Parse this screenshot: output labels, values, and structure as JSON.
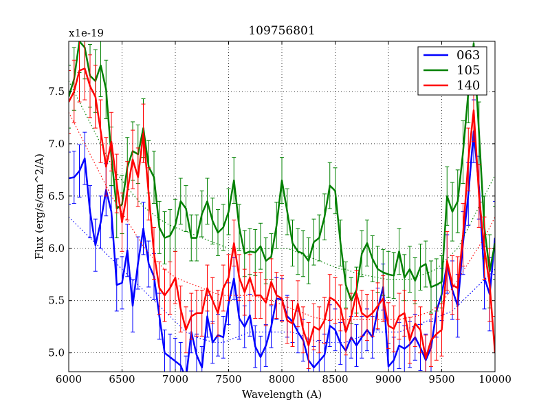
{
  "chart_data": {
    "type": "line",
    "title": "109756801",
    "xlabel": "Wavelength (A)",
    "ylabel": "Flux (erg/s/cm^2/A)",
    "y_offset_label": "x1e-19",
    "xlim": [
      6000,
      10000
    ],
    "ylim": [
      4.82,
      7.98
    ],
    "x_ticks": [
      6000,
      6500,
      7000,
      7500,
      8000,
      8500,
      9000,
      9500,
      10000
    ],
    "x_tick_labels": [
      "6000",
      "6500",
      "7000",
      "7500",
      "8000",
      "8500",
      "9000",
      "9500",
      "10000"
    ],
    "y_ticks": [
      5.0,
      5.5,
      6.0,
      6.5,
      7.0,
      7.5
    ],
    "y_tick_labels": [
      "5.0",
      "5.5",
      "6.0",
      "6.5",
      "7.0",
      "7.5"
    ],
    "grid": true,
    "legend_position": "top-right",
    "series": [
      {
        "name": "063",
        "color": "#0000ff",
        "x": [
          6000,
          6050,
          6100,
          6150,
          6200,
          6250,
          6300,
          6350,
          6400,
          6450,
          6500,
          6550,
          6600,
          6650,
          6700,
          6750,
          6800,
          6850,
          6900,
          6950,
          7000,
          7050,
          7100,
          7150,
          7200,
          7250,
          7300,
          7350,
          7400,
          7450,
          7500,
          7550,
          7600,
          7650,
          7700,
          7750,
          7800,
          7850,
          7900,
          7950,
          8000,
          8050,
          8100,
          8150,
          8200,
          8250,
          8300,
          8350,
          8400,
          8450,
          8500,
          8550,
          8600,
          8650,
          8700,
          8750,
          8800,
          8850,
          8900,
          8950,
          9000,
          9050,
          9100,
          9150,
          9200,
          9250,
          9300,
          9350,
          9400,
          9450,
          9500,
          9550,
          9600,
          9650,
          9700,
          9750,
          9800,
          9850,
          9900,
          9950,
          10000
        ],
        "values": [
          6.67,
          6.68,
          6.74,
          6.86,
          6.35,
          6.03,
          6.25,
          6.56,
          6.35,
          5.65,
          5.67,
          5.98,
          5.45,
          5.86,
          6.19,
          5.85,
          5.73,
          5.35,
          5.0,
          4.96,
          4.92,
          4.88,
          4.75,
          5.2,
          4.98,
          4.86,
          5.35,
          5.1,
          5.17,
          5.15,
          5.47,
          5.71,
          5.33,
          5.25,
          5.36,
          5.06,
          4.96,
          5.07,
          5.25,
          5.52,
          5.51,
          5.35,
          5.3,
          5.2,
          5.12,
          4.93,
          4.86,
          4.92,
          4.98,
          5.26,
          5.22,
          5.09,
          5.02,
          5.15,
          5.07,
          5.15,
          5.22,
          5.15,
          5.42,
          5.63,
          4.87,
          4.93,
          5.07,
          5.04,
          5.08,
          5.15,
          5.05,
          4.93,
          5.05,
          5.4,
          5.56,
          5.85,
          5.6,
          5.45,
          6.05,
          6.52,
          7.12,
          6.58,
          5.72,
          5.56,
          6.1
        ],
        "errors": [
          0.25,
          0.25,
          0.25,
          0.25,
          0.25,
          0.25,
          0.25,
          0.25,
          0.25,
          0.25,
          0.25,
          0.25,
          0.25,
          0.25,
          0.25,
          0.22,
          0.22,
          0.22,
          0.22,
          0.22,
          0.22,
          0.22,
          0.22,
          0.2,
          0.2,
          0.2,
          0.2,
          0.2,
          0.2,
          0.2,
          0.2,
          0.2,
          0.2,
          0.2,
          0.2,
          0.2,
          0.2,
          0.2,
          0.2,
          0.2,
          0.2,
          0.2,
          0.2,
          0.2,
          0.2,
          0.2,
          0.2,
          0.2,
          0.2,
          0.2,
          0.2,
          0.2,
          0.2,
          0.2,
          0.2,
          0.2,
          0.2,
          0.2,
          0.2,
          0.22,
          0.22,
          0.22,
          0.22,
          0.22,
          0.22,
          0.22,
          0.22,
          0.25,
          0.25,
          0.25,
          0.25,
          0.28,
          0.28,
          0.3,
          0.3,
          0.3,
          0.3,
          0.3,
          0.3,
          0.35,
          0.35
        ],
        "continuum": [
          6.3,
          6.25,
          6.2,
          6.15,
          6.1,
          6.05,
          6.0,
          5.95,
          5.9,
          5.85,
          5.8,
          5.75,
          5.7,
          5.65,
          5.6,
          5.55,
          5.5,
          5.45,
          5.4,
          5.35,
          5.3,
          5.25,
          5.2,
          5.18,
          5.15,
          5.13,
          5.12,
          5.1,
          5.1,
          5.1,
          5.12,
          5.14,
          5.16,
          5.18,
          5.2,
          5.2,
          5.2,
          5.2,
          5.2,
          5.2,
          5.2,
          5.2,
          5.2,
          5.18,
          5.16,
          5.14,
          5.12,
          5.1,
          5.1,
          5.1,
          5.1,
          5.1,
          5.1,
          5.12,
          5.14,
          5.16,
          5.18,
          5.2,
          5.2,
          5.2,
          5.2,
          5.2,
          5.2,
          5.22,
          5.24,
          5.26,
          5.28,
          5.3,
          5.32,
          5.34,
          5.36,
          5.38,
          5.4,
          5.45,
          5.5,
          5.55,
          5.6,
          5.65,
          5.7,
          5.75,
          5.8
        ]
      },
      {
        "name": "105",
        "color": "#008000",
        "x": [
          6000,
          6050,
          6100,
          6150,
          6200,
          6250,
          6300,
          6350,
          6400,
          6450,
          6500,
          6550,
          6600,
          6650,
          6700,
          6750,
          6800,
          6850,
          6900,
          6950,
          7000,
          7050,
          7100,
          7150,
          7200,
          7250,
          7300,
          7350,
          7400,
          7450,
          7500,
          7550,
          7600,
          7650,
          7700,
          7750,
          7800,
          7850,
          7900,
          7950,
          8000,
          8050,
          8100,
          8150,
          8200,
          8250,
          8300,
          8350,
          8400,
          8450,
          8500,
          8550,
          8600,
          8650,
          8700,
          8750,
          8800,
          8850,
          8900,
          8950,
          9000,
          9050,
          9100,
          9150,
          9200,
          9250,
          9300,
          9350,
          9400,
          9450,
          9500,
          9550,
          9600,
          9650,
          9700,
          9750,
          9800,
          9850,
          9900,
          9950,
          10000
        ],
        "values": [
          7.45,
          7.62,
          7.98,
          7.92,
          7.65,
          7.6,
          7.75,
          7.52,
          6.88,
          6.38,
          6.42,
          6.78,
          6.93,
          6.9,
          7.15,
          6.78,
          6.68,
          6.2,
          6.1,
          6.12,
          6.22,
          6.45,
          6.38,
          6.1,
          6.1,
          6.33,
          6.45,
          6.26,
          6.15,
          6.2,
          6.35,
          6.65,
          6.2,
          5.95,
          5.97,
          5.96,
          6.02,
          5.88,
          5.92,
          6.22,
          6.65,
          6.35,
          6.05,
          5.97,
          5.95,
          5.88,
          6.06,
          6.1,
          6.3,
          6.6,
          6.55,
          6.05,
          5.65,
          5.5,
          5.6,
          5.95,
          6.05,
          5.9,
          5.8,
          5.77,
          5.75,
          5.74,
          5.97,
          5.72,
          5.8,
          5.69,
          5.82,
          5.85,
          5.63,
          5.65,
          5.68,
          6.5,
          6.35,
          6.45,
          6.92,
          7.5,
          7.96,
          7.1,
          6.2,
          5.78,
          6.05
        ],
        "errors": [
          0.3,
          0.3,
          0.3,
          0.3,
          0.3,
          0.3,
          0.3,
          0.28,
          0.28,
          0.28,
          0.28,
          0.28,
          0.28,
          0.28,
          0.28,
          0.25,
          0.25,
          0.25,
          0.25,
          0.25,
          0.25,
          0.22,
          0.22,
          0.22,
          0.22,
          0.22,
          0.22,
          0.22,
          0.22,
          0.22,
          0.22,
          0.22,
          0.22,
          0.22,
          0.22,
          0.22,
          0.22,
          0.22,
          0.22,
          0.22,
          0.22,
          0.22,
          0.22,
          0.22,
          0.22,
          0.22,
          0.22,
          0.22,
          0.22,
          0.22,
          0.22,
          0.22,
          0.22,
          0.22,
          0.22,
          0.22,
          0.22,
          0.22,
          0.22,
          0.22,
          0.22,
          0.22,
          0.22,
          0.22,
          0.22,
          0.22,
          0.22,
          0.22,
          0.25,
          0.25,
          0.25,
          0.28,
          0.28,
          0.3,
          0.3,
          0.3,
          0.3,
          0.3,
          0.3,
          0.35,
          0.35
        ],
        "continuum": [
          7.6,
          7.5,
          7.4,
          7.3,
          7.2,
          7.1,
          7.0,
          6.9,
          6.8,
          6.72,
          6.65,
          6.58,
          6.52,
          6.46,
          6.4,
          6.36,
          6.32,
          6.28,
          6.25,
          6.22,
          6.2,
          6.18,
          6.16,
          6.14,
          6.12,
          6.1,
          6.08,
          6.06,
          6.04,
          6.02,
          6.0,
          6.0,
          6.0,
          6.0,
          6.0,
          6.0,
          6.0,
          6.0,
          6.0,
          6.0,
          6.0,
          6.0,
          5.98,
          5.96,
          5.94,
          5.92,
          5.9,
          5.88,
          5.86,
          5.84,
          5.82,
          5.8,
          5.8,
          5.78,
          5.76,
          5.75,
          5.74,
          5.73,
          5.72,
          5.71,
          5.7,
          5.7,
          5.7,
          5.7,
          5.7,
          5.72,
          5.74,
          5.76,
          5.78,
          5.8,
          5.85,
          5.9,
          5.95,
          6.0,
          6.1,
          6.2,
          6.3,
          6.4,
          6.5,
          6.6,
          6.7
        ]
      },
      {
        "name": "140",
        "color": "#ff0000",
        "x": [
          6000,
          6050,
          6100,
          6150,
          6200,
          6250,
          6300,
          6350,
          6400,
          6450,
          6500,
          6550,
          6600,
          6650,
          6700,
          6750,
          6800,
          6850,
          6900,
          6950,
          7000,
          7050,
          7100,
          7150,
          7200,
          7250,
          7300,
          7350,
          7400,
          7450,
          7500,
          7550,
          7600,
          7650,
          7700,
          7750,
          7800,
          7850,
          7900,
          7950,
          8000,
          8050,
          8100,
          8150,
          8200,
          8250,
          8300,
          8350,
          8400,
          8450,
          8500,
          8550,
          8600,
          8650,
          8700,
          8750,
          8800,
          8850,
          8900,
          8950,
          9000,
          9050,
          9100,
          9150,
          9200,
          9250,
          9300,
          9350,
          9400,
          9450,
          9500,
          9550,
          9600,
          9650,
          9700,
          9750,
          9800,
          9850,
          9900,
          9950,
          10000
        ],
        "values": [
          7.4,
          7.5,
          7.7,
          7.72,
          7.55,
          7.45,
          7.12,
          6.78,
          7.02,
          6.62,
          6.25,
          6.55,
          6.85,
          6.68,
          7.1,
          6.52,
          5.95,
          5.62,
          5.55,
          5.62,
          5.72,
          5.42,
          5.22,
          5.35,
          5.38,
          5.38,
          5.62,
          5.5,
          5.38,
          5.62,
          5.72,
          6.05,
          5.72,
          5.58,
          5.72,
          5.55,
          5.55,
          5.48,
          5.68,
          5.55,
          5.52,
          5.31,
          5.28,
          5.47,
          5.22,
          5.07,
          5.25,
          5.22,
          5.31,
          5.53,
          5.5,
          5.43,
          5.2,
          5.35,
          5.57,
          5.38,
          5.34,
          5.38,
          5.45,
          5.52,
          5.26,
          5.23,
          5.35,
          5.38,
          5.12,
          5.28,
          5.22,
          4.95,
          5.12,
          5.18,
          5.22,
          5.88,
          5.65,
          5.62,
          6.13,
          6.85,
          7.32,
          6.5,
          6.0,
          5.65,
          5.0
        ],
        "errors": [
          0.3,
          0.3,
          0.3,
          0.3,
          0.3,
          0.3,
          0.3,
          0.28,
          0.28,
          0.28,
          0.28,
          0.28,
          0.28,
          0.28,
          0.28,
          0.25,
          0.25,
          0.25,
          0.25,
          0.25,
          0.25,
          0.22,
          0.22,
          0.22,
          0.22,
          0.22,
          0.22,
          0.22,
          0.22,
          0.22,
          0.22,
          0.22,
          0.22,
          0.22,
          0.22,
          0.22,
          0.22,
          0.22,
          0.22,
          0.22,
          0.22,
          0.22,
          0.22,
          0.22,
          0.22,
          0.22,
          0.22,
          0.22,
          0.22,
          0.22,
          0.22,
          0.22,
          0.22,
          0.22,
          0.22,
          0.22,
          0.22,
          0.22,
          0.22,
          0.22,
          0.22,
          0.22,
          0.22,
          0.22,
          0.22,
          0.22,
          0.22,
          0.22,
          0.25,
          0.25,
          0.25,
          0.28,
          0.28,
          0.3,
          0.3,
          0.3,
          0.3,
          0.3,
          0.3,
          0.35,
          0.35
        ],
        "continuum": [
          7.3,
          7.2,
          7.1,
          7.0,
          6.9,
          6.8,
          6.7,
          6.6,
          6.5,
          6.42,
          6.34,
          6.26,
          6.18,
          6.1,
          6.02,
          5.95,
          5.9,
          5.85,
          5.8,
          5.76,
          5.72,
          5.7,
          5.68,
          5.66,
          5.64,
          5.62,
          5.6,
          5.58,
          5.56,
          5.55,
          5.55,
          5.55,
          5.55,
          5.55,
          5.55,
          5.54,
          5.53,
          5.52,
          5.5,
          5.48,
          5.46,
          5.44,
          5.42,
          5.4,
          5.38,
          5.36,
          5.34,
          5.33,
          5.32,
          5.32,
          5.32,
          5.32,
          5.32,
          5.32,
          5.32,
          5.32,
          5.32,
          5.32,
          5.32,
          5.32,
          5.32,
          5.32,
          5.32,
          5.33,
          5.34,
          5.35,
          5.36,
          5.38,
          5.4,
          5.44,
          5.48,
          5.55,
          5.62,
          5.7,
          5.78,
          5.86,
          5.94,
          6.02,
          6.1,
          6.2,
          6.3
        ]
      }
    ]
  }
}
